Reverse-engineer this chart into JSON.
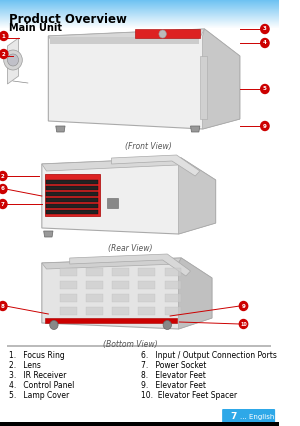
{
  "title": "Product Overview",
  "subtitle": "Main Unit",
  "page_number": "7",
  "page_label": "... English",
  "front_view_label": "(Front View)",
  "rear_view_label": "(Rear View)",
  "bottom_view_label": "(Bottom View)",
  "items_left": [
    "1.   Focus Ring",
    "2.   Lens",
    "3.   IR Receiver",
    "4.   Control Panel",
    "5.   Lamp Cover"
  ],
  "items_right": [
    "6.   Input / Output Connection Ports",
    "7.   Power Socket",
    "8.   Elevator Feet",
    "9.   Elevator Feet",
    "10.  Elevator Feet Spacer"
  ],
  "callout_color": "#cc0000",
  "line_color": "#cc0000",
  "page_badge_color": "#2ea8e8",
  "separator_color": "#bbbbbb",
  "title_fontsize": 8.5,
  "subtitle_fontsize": 7.0,
  "view_label_fontsize": 5.5,
  "item_fontsize": 5.5,
  "callout_fontsize": 4.0,
  "gradient_color": "#55b8f0",
  "bg_color": "#ffffff"
}
